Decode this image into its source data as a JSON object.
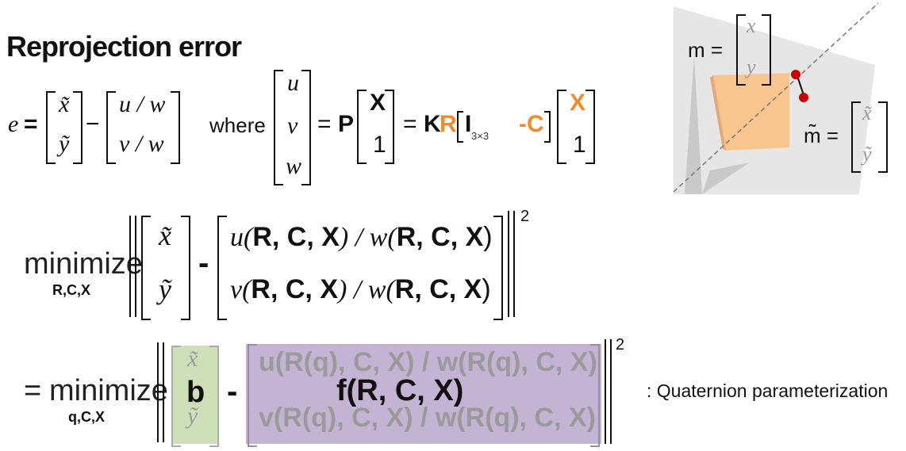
{
  "slide": {
    "title": "Reprojection error",
    "e_def": {
      "lhs": "e",
      "eq": "=",
      "minus": "−",
      "obs": [
        "x̃",
        "ỹ"
      ],
      "proj": [
        "u / w",
        "v / w"
      ],
      "where": "where",
      "uvw": [
        "u",
        "v",
        "w"
      ],
      "P": "P",
      "X": "X",
      "one": "1",
      "K": "K",
      "R": "R",
      "I": "I",
      "I_sub": "3×3",
      "C": "-C"
    },
    "min1": {
      "op": "minimize",
      "sub": "R,C,X",
      "obs": [
        "x̃",
        "ỹ"
      ],
      "row1_a": "u(",
      "row1_b": "R, C, X",
      "row1_c": ") / w(",
      "row1_d": "R, C, X",
      "row1_e": ")",
      "row2_a": "v(",
      "row2_b": "R, C, X",
      "row2_c": ") / w(",
      "row2_d": "R, C, X",
      "row2_e": ")",
      "minus": "-",
      "power": "2"
    },
    "min2": {
      "eq": "=",
      "op": "minimize",
      "sub": "q,C,X",
      "b": "b",
      "b_bg": [
        "x̃",
        "ỹ"
      ],
      "minus": "-",
      "f": "f(R, C, X)",
      "row1": "u(R(q), C, X) / w(R(q), C, X)",
      "row2": "v(R(q), C, X) / w(R(q), C, X)",
      "power": "2",
      "note": ": Quaternion parameterization"
    },
    "diagram": {
      "m_label": "m =",
      "m_vec": [
        "x",
        "y"
      ],
      "mt_label": "m̃ =",
      "mt_vec": [
        "x̃",
        "ỹ"
      ]
    }
  },
  "colors": {
    "orange": "#f28c28",
    "green_box": "#cfe0b8",
    "purple_box": "#c4b4d4",
    "point_red": "#cc0000",
    "cube": "#f8c58f"
  }
}
